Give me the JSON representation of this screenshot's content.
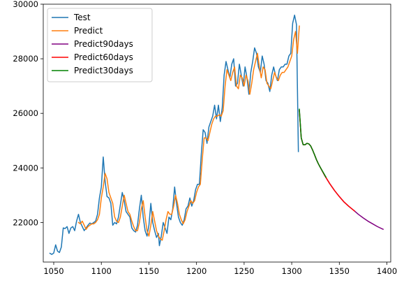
{
  "chart_data": {
    "type": "line",
    "title": "",
    "xlabel": "",
    "ylabel": "",
    "xlim": [
      1039,
      1404
    ],
    "ylim": [
      20550,
      30000
    ],
    "xticks": [
      1050,
      1100,
      1150,
      1200,
      1250,
      1300,
      1350,
      1400
    ],
    "yticks": [
      22000,
      24000,
      26000,
      28000,
      30000
    ],
    "grid": false,
    "legend_position": "top-left",
    "series": [
      {
        "name": "Test",
        "color": "#1f77b4",
        "points": [
          [
            1046,
            20870
          ],
          [
            1048,
            20830
          ],
          [
            1050,
            20880
          ],
          [
            1052,
            21180
          ],
          [
            1054,
            20950
          ],
          [
            1056,
            20900
          ],
          [
            1058,
            21100
          ],
          [
            1060,
            21800
          ],
          [
            1062,
            21780
          ],
          [
            1064,
            21850
          ],
          [
            1066,
            21600
          ],
          [
            1068,
            21800
          ],
          [
            1070,
            21850
          ],
          [
            1072,
            21700
          ],
          [
            1074,
            22050
          ],
          [
            1076,
            22300
          ],
          [
            1078,
            22000
          ],
          [
            1080,
            21850
          ],
          [
            1082,
            21700
          ],
          [
            1084,
            21800
          ],
          [
            1086,
            21900
          ],
          [
            1088,
            21980
          ],
          [
            1090,
            21950
          ],
          [
            1092,
            22000
          ],
          [
            1094,
            22050
          ],
          [
            1096,
            22300
          ],
          [
            1098,
            22900
          ],
          [
            1100,
            23300
          ],
          [
            1102,
            24400
          ],
          [
            1104,
            23500
          ],
          [
            1106,
            22950
          ],
          [
            1108,
            22900
          ],
          [
            1110,
            22700
          ],
          [
            1112,
            21900
          ],
          [
            1114,
            22000
          ],
          [
            1116,
            21950
          ],
          [
            1118,
            22200
          ],
          [
            1120,
            22650
          ],
          [
            1122,
            23100
          ],
          [
            1124,
            22800
          ],
          [
            1126,
            22400
          ],
          [
            1128,
            22300
          ],
          [
            1130,
            22200
          ],
          [
            1132,
            21800
          ],
          [
            1134,
            21700
          ],
          [
            1136,
            21650
          ],
          [
            1138,
            21900
          ],
          [
            1140,
            22500
          ],
          [
            1142,
            23000
          ],
          [
            1144,
            22200
          ],
          [
            1146,
            21700
          ],
          [
            1148,
            21500
          ],
          [
            1150,
            21900
          ],
          [
            1152,
            22700
          ],
          [
            1154,
            22000
          ],
          [
            1156,
            21700
          ],
          [
            1158,
            21450
          ],
          [
            1160,
            21600
          ],
          [
            1161,
            21150
          ],
          [
            1163,
            21500
          ],
          [
            1165,
            22000
          ],
          [
            1167,
            21800
          ],
          [
            1169,
            21600
          ],
          [
            1171,
            22200
          ],
          [
            1173,
            22100
          ],
          [
            1175,
            22500
          ],
          [
            1177,
            23300
          ],
          [
            1179,
            22700
          ],
          [
            1181,
            22200
          ],
          [
            1183,
            22000
          ],
          [
            1185,
            21900
          ],
          [
            1187,
            22100
          ],
          [
            1189,
            22500
          ],
          [
            1191,
            22600
          ],
          [
            1193,
            22900
          ],
          [
            1195,
            22600
          ],
          [
            1197,
            22800
          ],
          [
            1199,
            23200
          ],
          [
            1201,
            23400
          ],
          [
            1203,
            23400
          ],
          [
            1205,
            24500
          ],
          [
            1207,
            25400
          ],
          [
            1209,
            25300
          ],
          [
            1211,
            24900
          ],
          [
            1213,
            25500
          ],
          [
            1215,
            25700
          ],
          [
            1217,
            25900
          ],
          [
            1219,
            26300
          ],
          [
            1221,
            25800
          ],
          [
            1223,
            26300
          ],
          [
            1225,
            25700
          ],
          [
            1227,
            26200
          ],
          [
            1229,
            27400
          ],
          [
            1231,
            27900
          ],
          [
            1233,
            27600
          ],
          [
            1235,
            27300
          ],
          [
            1237,
            27800
          ],
          [
            1239,
            28000
          ],
          [
            1241,
            27000
          ],
          [
            1243,
            27100
          ],
          [
            1245,
            27800
          ],
          [
            1247,
            27400
          ],
          [
            1249,
            27000
          ],
          [
            1251,
            27700
          ],
          [
            1253,
            27300
          ],
          [
            1255,
            26700
          ],
          [
            1257,
            27500
          ],
          [
            1259,
            27900
          ],
          [
            1261,
            28400
          ],
          [
            1263,
            28200
          ],
          [
            1265,
            27700
          ],
          [
            1267,
            27500
          ],
          [
            1269,
            28100
          ],
          [
            1271,
            27800
          ],
          [
            1273,
            27200
          ],
          [
            1275,
            27100
          ],
          [
            1277,
            26800
          ],
          [
            1279,
            27400
          ],
          [
            1281,
            27700
          ],
          [
            1283,
            27400
          ],
          [
            1285,
            27200
          ],
          [
            1287,
            27600
          ],
          [
            1289,
            27700
          ],
          [
            1291,
            27700
          ],
          [
            1293,
            27800
          ],
          [
            1295,
            27800
          ],
          [
            1297,
            28100
          ],
          [
            1299,
            28200
          ],
          [
            1301,
            29300
          ],
          [
            1303,
            29600
          ],
          [
            1305,
            29250
          ],
          [
            1307,
            24600
          ]
        ]
      },
      {
        "name": "Predict",
        "color": "#ff7f0e",
        "points": [
          [
            1076,
            22000
          ],
          [
            1078,
            21950
          ],
          [
            1080,
            22050
          ],
          [
            1082,
            21900
          ],
          [
            1084,
            21750
          ],
          [
            1086,
            21850
          ],
          [
            1088,
            21900
          ],
          [
            1090,
            21950
          ],
          [
            1092,
            21950
          ],
          [
            1094,
            22000
          ],
          [
            1096,
            22100
          ],
          [
            1098,
            22300
          ],
          [
            1100,
            22900
          ],
          [
            1102,
            23300
          ],
          [
            1104,
            23800
          ],
          [
            1106,
            23600
          ],
          [
            1108,
            23100
          ],
          [
            1110,
            22900
          ],
          [
            1112,
            22700
          ],
          [
            1114,
            22200
          ],
          [
            1116,
            22050
          ],
          [
            1118,
            22000
          ],
          [
            1120,
            22200
          ],
          [
            1122,
            22600
          ],
          [
            1124,
            23000
          ],
          [
            1126,
            22700
          ],
          [
            1128,
            22400
          ],
          [
            1130,
            22300
          ],
          [
            1132,
            22050
          ],
          [
            1134,
            21850
          ],
          [
            1136,
            21700
          ],
          [
            1138,
            21700
          ],
          [
            1140,
            22000
          ],
          [
            1142,
            22500
          ],
          [
            1144,
            22800
          ],
          [
            1146,
            22200
          ],
          [
            1148,
            21700
          ],
          [
            1150,
            21500
          ],
          [
            1152,
            21900
          ],
          [
            1154,
            22400
          ],
          [
            1156,
            22050
          ],
          [
            1158,
            21700
          ],
          [
            1160,
            21500
          ],
          [
            1162,
            21400
          ],
          [
            1164,
            21350
          ],
          [
            1166,
            21700
          ],
          [
            1168,
            22100
          ],
          [
            1170,
            22400
          ],
          [
            1172,
            22300
          ],
          [
            1174,
            22300
          ],
          [
            1176,
            22600
          ],
          [
            1178,
            23000
          ],
          [
            1180,
            22700
          ],
          [
            1182,
            22300
          ],
          [
            1184,
            22100
          ],
          [
            1186,
            21950
          ],
          [
            1188,
            22100
          ],
          [
            1190,
            22400
          ],
          [
            1192,
            22600
          ],
          [
            1194,
            22800
          ],
          [
            1196,
            22700
          ],
          [
            1198,
            22800
          ],
          [
            1200,
            23100
          ],
          [
            1202,
            23300
          ],
          [
            1204,
            23400
          ],
          [
            1206,
            24300
          ],
          [
            1208,
            25100
          ],
          [
            1210,
            25100
          ],
          [
            1212,
            25000
          ],
          [
            1214,
            25300
          ],
          [
            1216,
            25600
          ],
          [
            1218,
            25800
          ],
          [
            1220,
            25900
          ],
          [
            1222,
            25900
          ],
          [
            1224,
            25950
          ],
          [
            1226,
            25900
          ],
          [
            1228,
            26100
          ],
          [
            1230,
            27000
          ],
          [
            1232,
            27600
          ],
          [
            1234,
            27400
          ],
          [
            1236,
            27200
          ],
          [
            1238,
            27500
          ],
          [
            1240,
            27700
          ],
          [
            1242,
            27000
          ],
          [
            1244,
            26900
          ],
          [
            1246,
            27400
          ],
          [
            1248,
            27300
          ],
          [
            1250,
            27000
          ],
          [
            1252,
            27400
          ],
          [
            1254,
            27200
          ],
          [
            1256,
            26700
          ],
          [
            1258,
            27100
          ],
          [
            1260,
            27600
          ],
          [
            1262,
            27900
          ],
          [
            1264,
            28200
          ],
          [
            1266,
            27700
          ],
          [
            1268,
            27300
          ],
          [
            1270,
            27700
          ],
          [
            1272,
            27600
          ],
          [
            1274,
            27100
          ],
          [
            1276,
            27000
          ],
          [
            1278,
            26900
          ],
          [
            1280,
            27200
          ],
          [
            1282,
            27500
          ],
          [
            1284,
            27300
          ],
          [
            1286,
            27200
          ],
          [
            1288,
            27400
          ],
          [
            1290,
            27500
          ],
          [
            1292,
            27500
          ],
          [
            1294,
            27600
          ],
          [
            1296,
            27700
          ],
          [
            1298,
            27900
          ],
          [
            1300,
            28100
          ],
          [
            1302,
            28700
          ],
          [
            1304,
            29000
          ],
          [
            1306,
            28200
          ],
          [
            1308,
            29200
          ]
        ]
      },
      {
        "name": "Predict90days",
        "color": "#800080",
        "points": [
          [
            1308,
            26100
          ],
          [
            1310,
            25100
          ],
          [
            1312,
            24850
          ],
          [
            1314,
            24850
          ],
          [
            1316,
            24900
          ],
          [
            1318,
            24880
          ],
          [
            1320,
            24800
          ],
          [
            1322,
            24650
          ],
          [
            1324,
            24480
          ],
          [
            1326,
            24300
          ],
          [
            1328,
            24150
          ],
          [
            1330,
            24020
          ],
          [
            1335,
            23700
          ],
          [
            1340,
            23420
          ],
          [
            1345,
            23170
          ],
          [
            1350,
            22950
          ],
          [
            1355,
            22750
          ],
          [
            1360,
            22590
          ],
          [
            1365,
            22450
          ],
          [
            1370,
            22300
          ],
          [
            1375,
            22170
          ],
          [
            1380,
            22050
          ],
          [
            1385,
            21950
          ],
          [
            1390,
            21850
          ],
          [
            1396,
            21750
          ]
        ]
      },
      {
        "name": "Predict60days",
        "color": "#ff0000",
        "points": [
          [
            1308,
            26100
          ],
          [
            1310,
            25100
          ],
          [
            1312,
            24850
          ],
          [
            1314,
            24850
          ],
          [
            1316,
            24900
          ],
          [
            1318,
            24880
          ],
          [
            1320,
            24800
          ],
          [
            1322,
            24650
          ],
          [
            1324,
            24480
          ],
          [
            1326,
            24300
          ],
          [
            1328,
            24150
          ],
          [
            1330,
            24020
          ],
          [
            1335,
            23700
          ],
          [
            1340,
            23420
          ],
          [
            1345,
            23170
          ],
          [
            1350,
            22950
          ],
          [
            1355,
            22750
          ],
          [
            1360,
            22590
          ],
          [
            1366,
            22420
          ]
        ]
      },
      {
        "name": "Predict30days",
        "color": "#008000",
        "points": [
          [
            1308,
            26150
          ],
          [
            1310,
            25100
          ],
          [
            1312,
            24850
          ],
          [
            1314,
            24850
          ],
          [
            1316,
            24900
          ],
          [
            1318,
            24880
          ],
          [
            1320,
            24800
          ],
          [
            1322,
            24650
          ],
          [
            1324,
            24480
          ],
          [
            1326,
            24300
          ],
          [
            1328,
            24150
          ],
          [
            1330,
            24020
          ],
          [
            1336,
            23660
          ]
        ]
      }
    ]
  }
}
